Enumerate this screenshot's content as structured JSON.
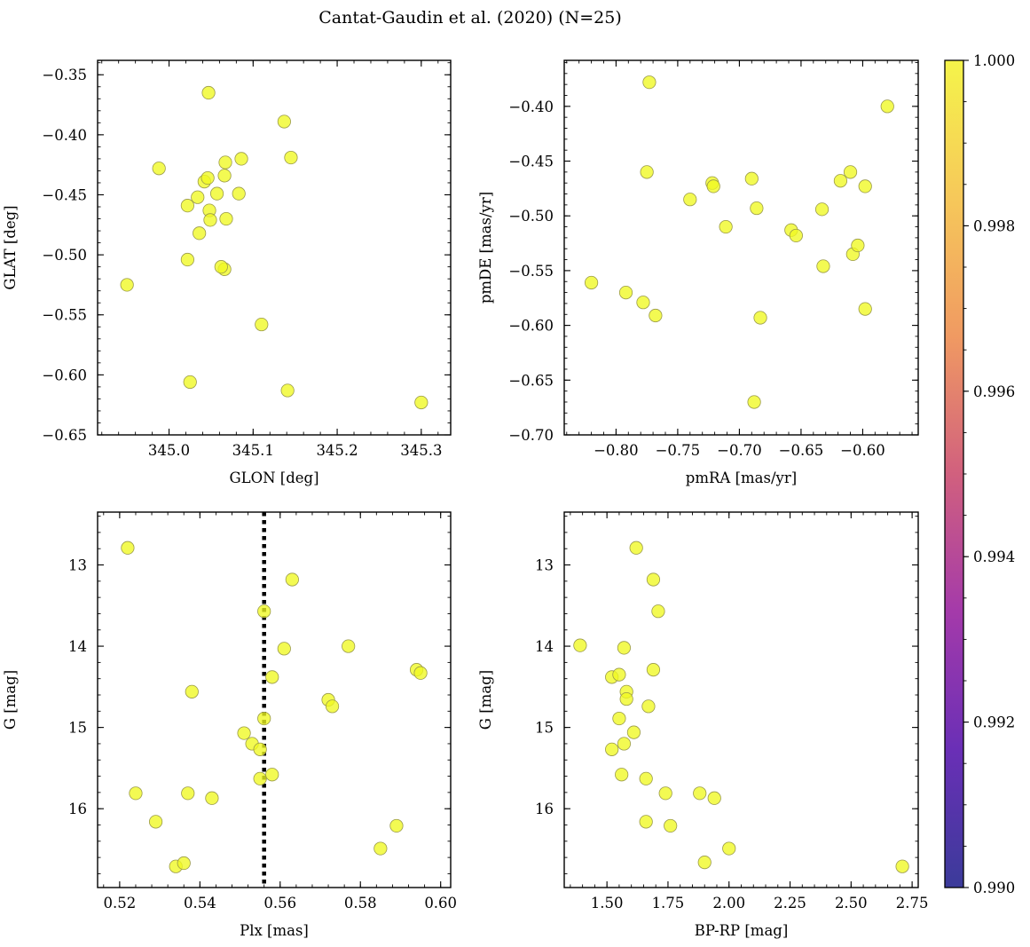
{
  "figure": {
    "title": "Cantat-Gaudin et al. (2020) (N=25)",
    "marker_color": "#f0f921",
    "marker_edge_color": "#9a9a4a",
    "colorbar": {
      "range": [
        0.99,
        1.0
      ],
      "ticks": [
        "0.990",
        "0.992",
        "0.994",
        "0.996",
        "0.998",
        "1.000"
      ],
      "colormap": "plasma",
      "colors": [
        "#3b3b9a",
        "#6a2fb6",
        "#a43aaa",
        "#d1607e",
        "#f09a62",
        "#f6c85a",
        "#f5f44a"
      ]
    }
  },
  "chart_data": [
    {
      "type": "scatter",
      "panel": "top-left",
      "xlabel": "GLON [deg]",
      "ylabel": "GLAT [deg]",
      "xlim": [
        344.915,
        345.335
      ],
      "ylim": [
        -0.65,
        -0.338
      ],
      "y_inverted": false,
      "xticks": [
        345.0,
        345.1,
        345.2,
        345.3
      ],
      "xtick_labels": [
        "345.0",
        "345.1",
        "345.2",
        "345.3"
      ],
      "yticks": [
        -0.65,
        -0.6,
        -0.55,
        -0.5,
        -0.45,
        -0.4,
        -0.35
      ],
      "ytick_labels": [
        "−0.65",
        "−0.60",
        "−0.55",
        "−0.50",
        "−0.45",
        "−0.40",
        "−0.35"
      ],
      "x": [
        344.95,
        344.988,
        345.022,
        345.034,
        345.042,
        345.046,
        345.048,
        345.049,
        345.047,
        345.036,
        345.022,
        345.025,
        345.057,
        345.066,
        345.067,
        345.066,
        345.068,
        345.083,
        345.086,
        345.062,
        345.11,
        345.137,
        345.145,
        345.141,
        345.3
      ],
      "y": [
        -0.525,
        -0.428,
        -0.459,
        -0.452,
        -0.439,
        -0.436,
        -0.463,
        -0.471,
        -0.365,
        -0.482,
        -0.504,
        -0.606,
        -0.449,
        -0.434,
        -0.423,
        -0.512,
        -0.47,
        -0.449,
        -0.42,
        -0.51,
        -0.558,
        -0.389,
        -0.419,
        -0.613,
        -0.623
      ]
    },
    {
      "type": "scatter",
      "panel": "top-right",
      "xlabel": "pmRA [mas/yr]",
      "ylabel": "pmDE [mas/yr]",
      "xlim": [
        -0.842,
        -0.555
      ],
      "ylim": [
        -0.7,
        -0.358
      ],
      "y_inverted": false,
      "xticks": [
        -0.8,
        -0.75,
        -0.7,
        -0.65,
        -0.6
      ],
      "xtick_labels": [
        "−0.80",
        "−0.75",
        "−0.70",
        "−0.65",
        "−0.60"
      ],
      "yticks": [
        -0.7,
        -0.65,
        -0.6,
        -0.55,
        -0.5,
        -0.45,
        -0.4
      ],
      "ytick_labels": [
        "−0.70",
        "−0.65",
        "−0.60",
        "−0.55",
        "−0.50",
        "−0.45",
        "−0.40"
      ],
      "x": [
        -0.82,
        -0.792,
        -0.778,
        -0.768,
        -0.775,
        -0.773,
        -0.74,
        -0.722,
        -0.721,
        -0.711,
        -0.69,
        -0.686,
        -0.683,
        -0.688,
        -0.658,
        -0.654,
        -0.633,
        -0.632,
        -0.618,
        -0.61,
        -0.608,
        -0.604,
        -0.598,
        -0.598,
        -0.58
      ],
      "y": [
        -0.561,
        -0.57,
        -0.579,
        -0.591,
        -0.46,
        -0.378,
        -0.485,
        -0.47,
        -0.473,
        -0.51,
        -0.466,
        -0.493,
        -0.593,
        -0.67,
        -0.513,
        -0.518,
        -0.494,
        -0.546,
        -0.468,
        -0.46,
        -0.535,
        -0.527,
        -0.473,
        -0.585,
        -0.4
      ]
    },
    {
      "type": "scatter",
      "panel": "bottom-left",
      "xlabel": "Plx [mas]",
      "ylabel": "G [mag]",
      "xlim": [
        0.5145,
        0.6025
      ],
      "ylim": [
        16.97,
        12.35
      ],
      "y_inverted": true,
      "xticks": [
        0.52,
        0.54,
        0.56,
        0.58,
        0.6
      ],
      "xtick_labels": [
        "0.52",
        "0.54",
        "0.56",
        "0.58",
        "0.60"
      ],
      "yticks": [
        13,
        14,
        15,
        16
      ],
      "ytick_labels": [
        "13",
        "14",
        "15",
        "16"
      ],
      "vline": 0.556,
      "x": [
        0.522,
        0.524,
        0.529,
        0.534,
        0.536,
        0.537,
        0.538,
        0.543,
        0.551,
        0.553,
        0.555,
        0.555,
        0.556,
        0.556,
        0.558,
        0.558,
        0.561,
        0.563,
        0.572,
        0.573,
        0.577,
        0.585,
        0.589,
        0.594,
        0.595
      ],
      "y": [
        12.79,
        15.81,
        16.16,
        16.71,
        16.67,
        15.81,
        14.56,
        15.87,
        15.07,
        15.2,
        15.27,
        15.63,
        13.57,
        14.89,
        15.58,
        14.38,
        14.03,
        13.18,
        14.66,
        14.74,
        14.0,
        16.49,
        16.21,
        14.29,
        14.33
      ]
    },
    {
      "type": "scatter",
      "panel": "bottom-right",
      "xlabel": "BP-RP [mag]",
      "ylabel": "G [mag]",
      "xlim": [
        1.325,
        2.775
      ],
      "ylim": [
        16.97,
        12.35
      ],
      "y_inverted": true,
      "xticks": [
        1.5,
        1.75,
        2.0,
        2.25,
        2.5,
        2.75
      ],
      "xtick_labels": [
        "1.50",
        "1.75",
        "2.00",
        "2.25",
        "2.50",
        "2.75"
      ],
      "yticks": [
        13,
        14,
        15,
        16
      ],
      "ytick_labels": [
        "13",
        "14",
        "15",
        "16"
      ],
      "x": [
        1.39,
        1.52,
        1.52,
        1.55,
        1.55,
        1.56,
        1.57,
        1.57,
        1.58,
        1.58,
        1.61,
        1.62,
        1.66,
        1.66,
        1.67,
        1.69,
        1.69,
        1.71,
        1.74,
        1.76,
        1.88,
        1.9,
        1.94,
        2.0,
        2.71
      ],
      "y": [
        13.99,
        14.38,
        15.27,
        14.35,
        14.89,
        15.58,
        14.02,
        15.2,
        14.56,
        14.65,
        15.06,
        12.79,
        15.63,
        16.16,
        14.74,
        13.18,
        14.29,
        13.57,
        15.81,
        16.21,
        15.81,
        16.66,
        15.87,
        16.49,
        16.71
      ]
    }
  ]
}
